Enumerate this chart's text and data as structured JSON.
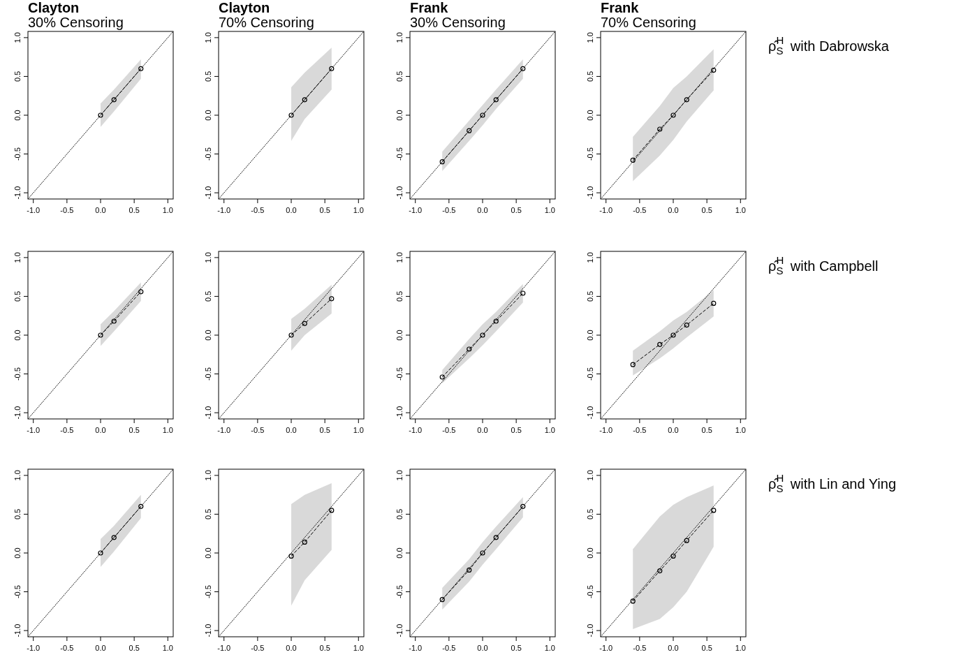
{
  "chart_data": [
    {
      "type": "line",
      "title": "Clayton",
      "subtitle": "30% Censoring",
      "xlim": [
        -1.08,
        1.08
      ],
      "ylim": [
        -1.08,
        1.08
      ],
      "xticks": [
        {
          "value": -1,
          "label": "-1.0"
        },
        {
          "value": -0.5,
          "label": "-0.5"
        },
        {
          "value": 0,
          "label": "0.0"
        },
        {
          "value": 0.5,
          "label": "0.5"
        },
        {
          "value": 1,
          "label": "1.0"
        }
      ],
      "yticks": [
        {
          "value": -1,
          "label": "-1.0"
        },
        {
          "value": -0.5,
          "label": "-0.5"
        },
        {
          "value": 0,
          "label": "0.0"
        },
        {
          "value": 0.5,
          "label": "0.5"
        },
        {
          "value": 1,
          "label": "1.0"
        }
      ],
      "marker": "circle",
      "series": [
        {
          "type": "line",
          "color": "#000000",
          "line_style": "dotted",
          "marker": "none",
          "x": [
            -1.08,
            1.08
          ],
          "values": [
            -1.08,
            1.08
          ]
        },
        {
          "color": "#000000",
          "line_style": "dashed",
          "x": [
            0,
            0.2,
            0.6
          ],
          "values": [
            0,
            0.2,
            0.6
          ],
          "lower": [
            -0.15,
            0.05,
            0.47
          ],
          "upper": [
            0.15,
            0.33,
            0.72
          ]
        }
      ]
    },
    {
      "type": "line",
      "title": "Clayton",
      "subtitle": "70% Censoring",
      "xlim": [
        -1.08,
        1.08
      ],
      "ylim": [
        -1.08,
        1.08
      ],
      "xticks": [
        {
          "value": -1,
          "label": "-1.0"
        },
        {
          "value": -0.5,
          "label": "-0.5"
        },
        {
          "value": 0,
          "label": "0.0"
        },
        {
          "value": 0.5,
          "label": "0.5"
        },
        {
          "value": 1,
          "label": "1.0"
        }
      ],
      "yticks": [
        {
          "value": -1,
          "label": "-1.0"
        },
        {
          "value": -0.5,
          "label": "-0.5"
        },
        {
          "value": 0,
          "label": "0.0"
        },
        {
          "value": 0.5,
          "label": "0.5"
        },
        {
          "value": 1,
          "label": "1.0"
        }
      ],
      "marker": "circle",
      "series": [
        {
          "type": "line",
          "color": "#000000",
          "line_style": "dotted",
          "marker": "none",
          "x": [
            -1.08,
            1.08
          ],
          "values": [
            -1.08,
            1.08
          ]
        },
        {
          "color": "#000000",
          "line_style": "dashed",
          "x": [
            0,
            0.2,
            0.6
          ],
          "values": [
            0,
            0.2,
            0.6
          ],
          "lower": [
            -0.33,
            -0.05,
            0.33
          ],
          "upper": [
            0.36,
            0.55,
            0.87
          ]
        }
      ]
    },
    {
      "type": "line",
      "title": "Frank",
      "subtitle": "30% Censoring",
      "xlim": [
        -1.08,
        1.08
      ],
      "ylim": [
        -1.08,
        1.08
      ],
      "xticks": [
        {
          "value": -1,
          "label": "-1.0"
        },
        {
          "value": -0.5,
          "label": "-0.5"
        },
        {
          "value": 0,
          "label": "0.0"
        },
        {
          "value": 0.5,
          "label": "0.5"
        },
        {
          "value": 1,
          "label": "1.0"
        }
      ],
      "yticks": [
        {
          "value": -1,
          "label": "-1.0"
        },
        {
          "value": -0.5,
          "label": "-0.5"
        },
        {
          "value": 0,
          "label": "0.0"
        },
        {
          "value": 0.5,
          "label": "0.5"
        },
        {
          "value": 1,
          "label": "1.0"
        }
      ],
      "marker": "circle",
      "series": [
        {
          "type": "line",
          "color": "#000000",
          "line_style": "dotted",
          "marker": "none",
          "x": [
            -1.08,
            1.08
          ],
          "values": [
            -1.08,
            1.08
          ]
        },
        {
          "color": "#000000",
          "line_style": "dashed",
          "x": [
            -0.6,
            -0.2,
            0,
            0.2,
            0.6
          ],
          "values": [
            -0.6,
            -0.2,
            0,
            0.2,
            0.6
          ],
          "lower": [
            -0.72,
            -0.33,
            -0.13,
            0.08,
            0.47
          ],
          "upper": [
            -0.47,
            -0.07,
            0.13,
            0.33,
            0.72
          ]
        }
      ]
    },
    {
      "type": "line",
      "title": "Frank",
      "subtitle": "70% Censoring",
      "annotations": [
        "ρ̂$_{S}$$^{H}$ with Dabrowska"
      ],
      "xlim": [
        -1.08,
        1.08
      ],
      "ylim": [
        -1.08,
        1.08
      ],
      "xticks": [
        {
          "value": -1,
          "label": "-1.0"
        },
        {
          "value": -0.5,
          "label": "-0.5"
        },
        {
          "value": 0,
          "label": "0.0"
        },
        {
          "value": 0.5,
          "label": "0.5"
        },
        {
          "value": 1,
          "label": "1.0"
        }
      ],
      "yticks": [
        {
          "value": -1,
          "label": "-1.0"
        },
        {
          "value": -0.5,
          "label": "-0.5"
        },
        {
          "value": 0,
          "label": "0.0"
        },
        {
          "value": 0.5,
          "label": "0.5"
        },
        {
          "value": 1,
          "label": "1.0"
        }
      ],
      "marker": "circle",
      "series": [
        {
          "type": "line",
          "color": "#000000",
          "line_style": "dotted",
          "marker": "none",
          "x": [
            -1.08,
            1.08
          ],
          "values": [
            -1.08,
            1.08
          ]
        },
        {
          "color": "#000000",
          "line_style": "dashed",
          "x": [
            -0.6,
            -0.2,
            0,
            0.2,
            0.6
          ],
          "values": [
            -0.58,
            -0.18,
            0,
            0.2,
            0.58
          ],
          "lower": [
            -0.85,
            -0.52,
            -0.32,
            -0.08,
            0.32
          ],
          "upper": [
            -0.28,
            0.12,
            0.35,
            0.5,
            0.85
          ]
        }
      ]
    },
    {
      "type": "line",
      "xlim": [
        -1.08,
        1.08
      ],
      "ylim": [
        -1.08,
        1.08
      ],
      "xticks": [
        {
          "value": -1,
          "label": "-1.0"
        },
        {
          "value": -0.5,
          "label": "-0.5"
        },
        {
          "value": 0,
          "label": "0.0"
        },
        {
          "value": 0.5,
          "label": "0.5"
        },
        {
          "value": 1,
          "label": "1.0"
        }
      ],
      "yticks": [
        {
          "value": -1,
          "label": "-1.0"
        },
        {
          "value": -0.5,
          "label": "-0.5"
        },
        {
          "value": 0,
          "label": "0.0"
        },
        {
          "value": 0.5,
          "label": "0.5"
        },
        {
          "value": 1,
          "label": "1.0"
        }
      ],
      "marker": "circle",
      "series": [
        {
          "type": "line",
          "color": "#000000",
          "line_style": "dotted",
          "marker": "none",
          "x": [
            -1.08,
            1.08
          ],
          "values": [
            -1.08,
            1.08
          ]
        },
        {
          "color": "#000000",
          "line_style": "dashed",
          "x": [
            0,
            0.2,
            0.6
          ],
          "values": [
            0,
            0.18,
            0.56
          ],
          "lower": [
            -0.14,
            0.05,
            0.44
          ],
          "upper": [
            0.14,
            0.31,
            0.68
          ]
        }
      ]
    },
    {
      "type": "line",
      "xlim": [
        -1.08,
        1.08
      ],
      "ylim": [
        -1.08,
        1.08
      ],
      "xticks": [
        {
          "value": -1,
          "label": "-1.0"
        },
        {
          "value": -0.5,
          "label": "-0.5"
        },
        {
          "value": 0,
          "label": "0.0"
        },
        {
          "value": 0.5,
          "label": "0.5"
        },
        {
          "value": 1,
          "label": "1.0"
        }
      ],
      "yticks": [
        {
          "value": -1,
          "label": "-1.0"
        },
        {
          "value": -0.5,
          "label": "-0.5"
        },
        {
          "value": 0,
          "label": "0.0"
        },
        {
          "value": 0.5,
          "label": "0.5"
        },
        {
          "value": 1,
          "label": "1.0"
        }
      ],
      "marker": "circle",
      "series": [
        {
          "type": "line",
          "color": "#000000",
          "line_style": "dotted",
          "marker": "none",
          "x": [
            -1.08,
            1.08
          ],
          "values": [
            -1.08,
            1.08
          ]
        },
        {
          "color": "#000000",
          "line_style": "dashed",
          "x": [
            0,
            0.2,
            0.6
          ],
          "values": [
            0,
            0.15,
            0.47
          ],
          "lower": [
            -0.2,
            0,
            0.28
          ],
          "upper": [
            0.21,
            0.34,
            0.65
          ]
        }
      ]
    },
    {
      "type": "line",
      "xlim": [
        -1.08,
        1.08
      ],
      "ylim": [
        -1.08,
        1.08
      ],
      "xticks": [
        {
          "value": -1,
          "label": "-1.0"
        },
        {
          "value": -0.5,
          "label": "-0.5"
        },
        {
          "value": 0,
          "label": "0.0"
        },
        {
          "value": 0.5,
          "label": "0.5"
        },
        {
          "value": 1,
          "label": "1.0"
        }
      ],
      "yticks": [
        {
          "value": -1,
          "label": "-1.0"
        },
        {
          "value": -0.5,
          "label": "-0.5"
        },
        {
          "value": 0,
          "label": "0.0"
        },
        {
          "value": 0.5,
          "label": "0.5"
        },
        {
          "value": 1,
          "label": "1.0"
        }
      ],
      "marker": "circle",
      "series": [
        {
          "type": "line",
          "color": "#000000",
          "line_style": "dotted",
          "marker": "none",
          "x": [
            -1.08,
            1.08
          ],
          "values": [
            -1.08,
            1.08
          ]
        },
        {
          "color": "#000000",
          "line_style": "dashed",
          "x": [
            -0.6,
            -0.2,
            0,
            0.2,
            0.6
          ],
          "values": [
            -0.54,
            -0.18,
            0,
            0.18,
            0.54
          ],
          "lower": [
            -0.62,
            -0.3,
            -0.13,
            0.05,
            0.42
          ],
          "upper": [
            -0.45,
            -0.05,
            0.14,
            0.3,
            0.66
          ]
        }
      ]
    },
    {
      "type": "line",
      "annotations": [
        "ρ̂$_{S}$$^{H}$ with Campbell"
      ],
      "xlim": [
        -1.08,
        1.08
      ],
      "ylim": [
        -1.08,
        1.08
      ],
      "xticks": [
        {
          "value": -1,
          "label": "-1.0"
        },
        {
          "value": -0.5,
          "label": "-0.5"
        },
        {
          "value": 0,
          "label": "0.0"
        },
        {
          "value": 0.5,
          "label": "0.5"
        },
        {
          "value": 1,
          "label": "1.0"
        }
      ],
      "yticks": [
        {
          "value": -1,
          "label": "-1.0"
        },
        {
          "value": -0.5,
          "label": "-0.5"
        },
        {
          "value": 0,
          "label": "0.0"
        },
        {
          "value": 0.5,
          "label": "0.5"
        },
        {
          "value": 1,
          "label": "1.0"
        }
      ],
      "marker": "circle",
      "series": [
        {
          "type": "line",
          "color": "#000000",
          "line_style": "dotted",
          "marker": "none",
          "x": [
            -1.08,
            1.08
          ],
          "values": [
            -1.08,
            1.08
          ]
        },
        {
          "color": "#000000",
          "line_style": "dashed",
          "x": [
            -0.6,
            -0.2,
            0,
            0.2,
            0.6
          ],
          "values": [
            -0.38,
            -0.12,
            0,
            0.13,
            0.41
          ],
          "lower": [
            -0.52,
            -0.3,
            -0.17,
            -0.03,
            0.24
          ],
          "upper": [
            -0.2,
            0.05,
            0.19,
            0.3,
            0.58
          ]
        }
      ]
    },
    {
      "type": "line",
      "xlim": [
        -1.08,
        1.08
      ],
      "ylim": [
        -1.08,
        1.08
      ],
      "xticks": [
        {
          "value": -1,
          "label": "-1.0"
        },
        {
          "value": -0.5,
          "label": "-0.5"
        },
        {
          "value": 0,
          "label": "0.0"
        },
        {
          "value": 0.5,
          "label": "0.5"
        },
        {
          "value": 1,
          "label": "1.0"
        }
      ],
      "yticks": [
        {
          "value": -1,
          "label": "-1.0"
        },
        {
          "value": -0.5,
          "label": "-0.5"
        },
        {
          "value": 0,
          "label": "0.0"
        },
        {
          "value": 0.5,
          "label": "0.5"
        },
        {
          "value": 1,
          "label": "1.0"
        }
      ],
      "marker": "circle",
      "series": [
        {
          "type": "line",
          "color": "#000000",
          "line_style": "dotted",
          "marker": "none",
          "x": [
            -1.08,
            1.08
          ],
          "values": [
            -1.08,
            1.08
          ]
        },
        {
          "color": "#000000",
          "line_style": "dashed",
          "x": [
            0,
            0.2,
            0.6
          ],
          "values": [
            0,
            0.2,
            0.6
          ],
          "lower": [
            -0.18,
            0.02,
            0.45
          ],
          "upper": [
            0.18,
            0.35,
            0.75
          ]
        }
      ]
    },
    {
      "type": "line",
      "xlim": [
        -1.08,
        1.08
      ],
      "ylim": [
        -1.08,
        1.08
      ],
      "xticks": [
        {
          "value": -1,
          "label": "-1.0"
        },
        {
          "value": -0.5,
          "label": "-0.5"
        },
        {
          "value": 0,
          "label": "0.0"
        },
        {
          "value": 0.5,
          "label": "0.5"
        },
        {
          "value": 1,
          "label": "1.0"
        }
      ],
      "yticks": [
        {
          "value": -1,
          "label": "-1.0"
        },
        {
          "value": -0.5,
          "label": "-0.5"
        },
        {
          "value": 0,
          "label": "0.0"
        },
        {
          "value": 0.5,
          "label": "0.5"
        },
        {
          "value": 1,
          "label": "1.0"
        }
      ],
      "marker": "circle",
      "series": [
        {
          "type": "line",
          "color": "#000000",
          "line_style": "dotted",
          "marker": "none",
          "x": [
            -1.08,
            1.08
          ],
          "values": [
            -1.08,
            1.08
          ]
        },
        {
          "color": "#000000",
          "line_style": "dashed",
          "x": [
            0,
            0.2,
            0.6
          ],
          "values": [
            -0.04,
            0.14,
            0.55
          ],
          "lower": [
            -0.68,
            -0.35,
            0.04
          ],
          "upper": [
            0.63,
            0.75,
            0.9
          ]
        }
      ]
    },
    {
      "type": "line",
      "xlim": [
        -1.08,
        1.08
      ],
      "ylim": [
        -1.08,
        1.08
      ],
      "xticks": [
        {
          "value": -1,
          "label": "-1.0"
        },
        {
          "value": -0.5,
          "label": "-0.5"
        },
        {
          "value": 0,
          "label": "0.0"
        },
        {
          "value": 0.5,
          "label": "0.5"
        },
        {
          "value": 1,
          "label": "1.0"
        }
      ],
      "yticks": [
        {
          "value": -1,
          "label": "-1.0"
        },
        {
          "value": -0.5,
          "label": "-0.5"
        },
        {
          "value": 0,
          "label": "0.0"
        },
        {
          "value": 0.5,
          "label": "0.5"
        },
        {
          "value": 1,
          "label": "1.0"
        }
      ],
      "marker": "circle",
      "series": [
        {
          "type": "line",
          "color": "#000000",
          "line_style": "dotted",
          "marker": "none",
          "x": [
            -1.08,
            1.08
          ],
          "values": [
            -1.08,
            1.08
          ]
        },
        {
          "color": "#000000",
          "line_style": "dashed",
          "x": [
            -0.6,
            -0.2,
            0,
            0.2,
            0.6
          ],
          "values": [
            -0.6,
            -0.22,
            0,
            0.2,
            0.6
          ],
          "lower": [
            -0.73,
            -0.37,
            -0.15,
            0.05,
            0.46
          ],
          "upper": [
            -0.45,
            -0.08,
            0.14,
            0.34,
            0.72
          ]
        }
      ]
    },
    {
      "type": "line",
      "annotations": [
        "ρ̂$_{S}$$^{H}$ with Lin and Ying"
      ],
      "xlim": [
        -1.08,
        1.08
      ],
      "ylim": [
        -1.08,
        1.08
      ],
      "xticks": [
        {
          "value": -1,
          "label": "-1.0"
        },
        {
          "value": -0.5,
          "label": "-0.5"
        },
        {
          "value": 0,
          "label": "0.0"
        },
        {
          "value": 0.5,
          "label": "0.5"
        },
        {
          "value": 1,
          "label": "1.0"
        }
      ],
      "yticks": [
        {
          "value": -1,
          "label": "-1.0"
        },
        {
          "value": -0.5,
          "label": "-0.5"
        },
        {
          "value": 0,
          "label": "0.0"
        },
        {
          "value": 0.5,
          "label": "0.5"
        },
        {
          "value": 1,
          "label": "1.0"
        }
      ],
      "marker": "circle",
      "series": [
        {
          "type": "line",
          "color": "#000000",
          "line_style": "dotted",
          "marker": "none",
          "x": [
            -1.08,
            1.08
          ],
          "values": [
            -1.08,
            1.08
          ]
        },
        {
          "color": "#000000",
          "line_style": "dashed",
          "x": [
            -0.6,
            -0.2,
            0,
            0.2,
            0.6
          ],
          "values": [
            -0.62,
            -0.23,
            -0.04,
            0.16,
            0.55
          ],
          "lower": [
            -0.98,
            -0.85,
            -0.7,
            -0.5,
            0.08
          ],
          "upper": [
            0.05,
            0.47,
            0.62,
            0.72,
            0.87
          ]
        }
      ]
    }
  ]
}
